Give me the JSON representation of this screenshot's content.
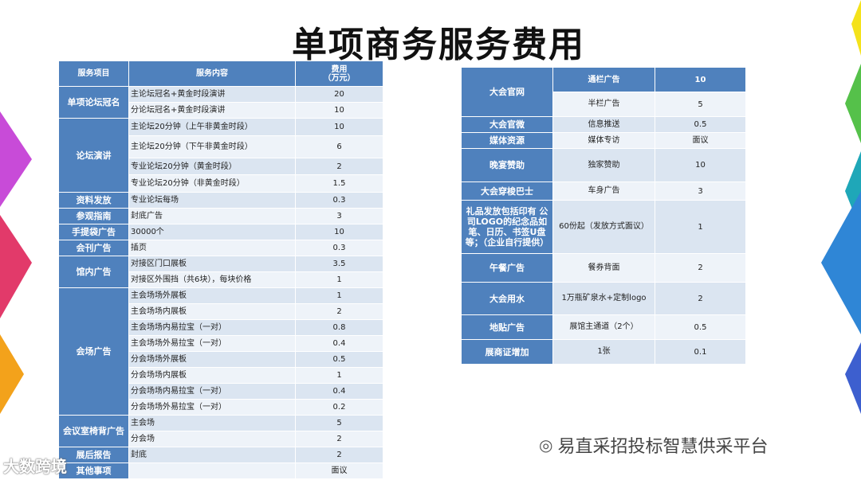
{
  "title": "单项商务服务费用",
  "left_table": {
    "headers": [
      "服务项目",
      "服务内容",
      "费用\n（万元）"
    ],
    "groups": [
      {
        "category": "单项论坛冠名",
        "rows": [
          [
            "主论坛冠名+黄金时段演讲",
            "20"
          ],
          [
            "分论坛冠名+黄金时段演讲",
            "10"
          ]
        ]
      },
      {
        "category": "论坛演讲",
        "rows": [
          [
            "主论坛20分钟（上午非黄金时段）",
            "10"
          ],
          [
            "主论坛20分钟（下午非黄金时段）",
            "6"
          ],
          [
            "专业论坛20分钟（黄金时段）",
            "2"
          ],
          [
            "专业论坛20分钟（非黄金时段）",
            "1.5"
          ]
        ]
      },
      {
        "category": "资料发放",
        "rows": [
          [
            "专业论坛每场",
            "0.3"
          ]
        ]
      },
      {
        "category": "参观指南",
        "rows": [
          [
            "封底广告",
            "3"
          ]
        ]
      },
      {
        "category": "手提袋广告",
        "rows": [
          [
            "30000个",
            "10"
          ]
        ]
      },
      {
        "category": "会刊广告",
        "rows": [
          [
            "插页",
            "0.3"
          ]
        ]
      },
      {
        "category": "馆内广告",
        "rows": [
          [
            "对接区门口展板",
            "3.5"
          ],
          [
            "对接区外围挡（共6块），每块价格",
            "1"
          ]
        ]
      },
      {
        "category": "会场广告",
        "rows": [
          [
            "主会场场外展板",
            "1"
          ],
          [
            "主会场场内展板",
            "2"
          ],
          [
            "主会场场内易拉宝（一对）",
            "0.8"
          ],
          [
            "主会场场外易拉宝（一对）",
            "0.4"
          ],
          [
            "分会场场外展板",
            "0.5"
          ],
          [
            "分会场场内展板",
            "1"
          ],
          [
            "分会场场内易拉宝（一对）",
            "0.4"
          ],
          [
            "分会场场外易拉宝（一对）",
            "0.2"
          ]
        ]
      },
      {
        "category": "会议室椅背广告",
        "rows": [
          [
            "主会场",
            "5"
          ],
          [
            "分会场",
            "2"
          ]
        ]
      },
      {
        "category": "展后报告",
        "rows": [
          [
            "封底",
            "2"
          ]
        ]
      },
      {
        "category": "其他事项",
        "rows": [
          [
            "",
            "面议"
          ]
        ]
      }
    ]
  },
  "right_table": {
    "groups": [
      {
        "category": "大会官网",
        "rows": [
          [
            "通栏广告",
            "10"
          ],
          [
            "半栏广告",
            "5"
          ]
        ]
      },
      {
        "category": "大会官微",
        "rows": [
          [
            "信息推送",
            "0.5"
          ]
        ]
      },
      {
        "category": "媒体资源",
        "rows": [
          [
            "媒体专访",
            "面议"
          ]
        ]
      },
      {
        "category": "晚宴赞助",
        "rows": [
          [
            "独家赞助",
            "10"
          ]
        ]
      },
      {
        "category": "大会穿梭巴士",
        "rows": [
          [
            "车身广告",
            "3"
          ]
        ]
      },
      {
        "category": "礼品发放包括印有 公司LOGO的纪念品如笔、日历、书签U盘等；（企业自行提供）",
        "rows": [
          [
            "60份起（发放方式面议）",
            "1"
          ]
        ]
      },
      {
        "category": "午餐广告",
        "rows": [
          [
            "餐券背面",
            "2"
          ]
        ]
      },
      {
        "category": "大会用水",
        "rows": [
          [
            "1万瓶矿泉水+定制logo",
            "2"
          ]
        ]
      },
      {
        "category": "地贴广告",
        "rows": [
          [
            "展馆主通道（2个）",
            "0.5"
          ]
        ]
      },
      {
        "category": "展商证增加",
        "rows": [
          [
            "1张",
            "0.1"
          ]
        ]
      }
    ]
  },
  "watermark_right": "易直采招投标智慧供采平台",
  "watermark_left": "大数跨境",
  "colors": {
    "header_blue": "#4f81bd",
    "row_light": "#dbe5f1",
    "row_lighter": "#eef3f9"
  }
}
